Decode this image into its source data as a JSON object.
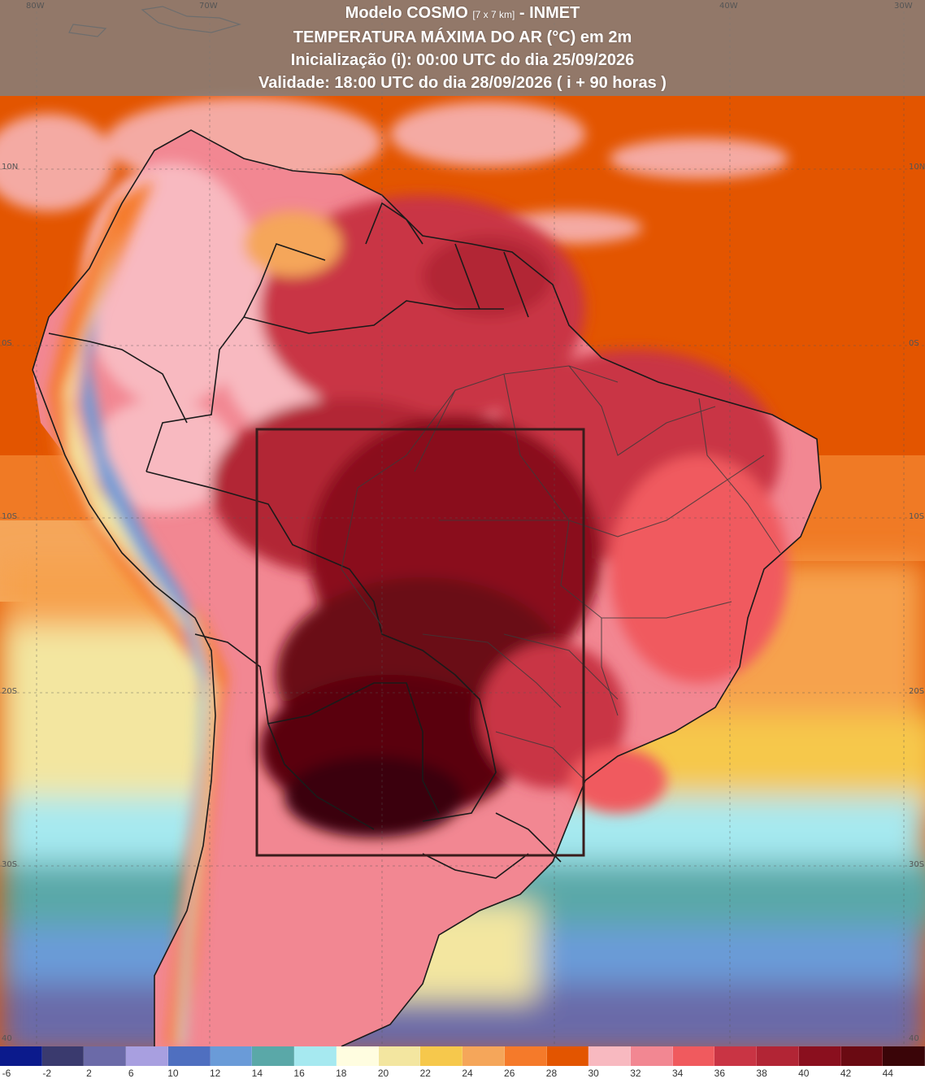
{
  "header": {
    "line1_main": "Modelo COSMO",
    "line1_small": "[7 x 7 km]",
    "line1_tail": "- INMET",
    "line2": "TEMPERATURA MÁXIMA DO AR (°C) em 2m",
    "line3": "Inicialização (i): 00:00 UTC do dia 25/09/2026",
    "line4": "Validade: 18:00 UTC do dia 28/09/2026 ( i + 90 horas )"
  },
  "axes": {
    "top_longitudes": [
      "80W",
      "70W",
      "40W",
      "30W"
    ],
    "left_latitudes": [
      "10N",
      "0S",
      "10S",
      "20S",
      "30S",
      "40"
    ],
    "right_latitudes": [
      "10N",
      "0S",
      "10S",
      "20S",
      "30S",
      "40"
    ]
  },
  "legend": {
    "unit": "°C",
    "ticks": [
      "-6",
      "-2",
      "2",
      "6",
      "10",
      "12",
      "14",
      "16",
      "18",
      "20",
      "22",
      "24",
      "26",
      "28",
      "30",
      "32",
      "34",
      "36",
      "38",
      "40",
      "42",
      "44"
    ],
    "colors": [
      "#0b1a8c",
      "#3a3a6e",
      "#6b6aa8",
      "#a89fe0",
      "#4f6fc0",
      "#6a9bd8",
      "#5aa8a8",
      "#a6e9f0",
      "#fffde0",
      "#f3e6a0",
      "#f6c84c",
      "#f5a65a",
      "#f57a2a",
      "#e35500",
      "#f8b9c0",
      "#f28792",
      "#f05a5e",
      "#c93444",
      "#b22535",
      "#8a0f1e",
      "#6a0a12",
      "#3a0508"
    ]
  },
  "map": {
    "highlight_box_color": "#3a1c1c",
    "ocean_color": "#e05a00",
    "hottest_color": "#5a0610"
  }
}
